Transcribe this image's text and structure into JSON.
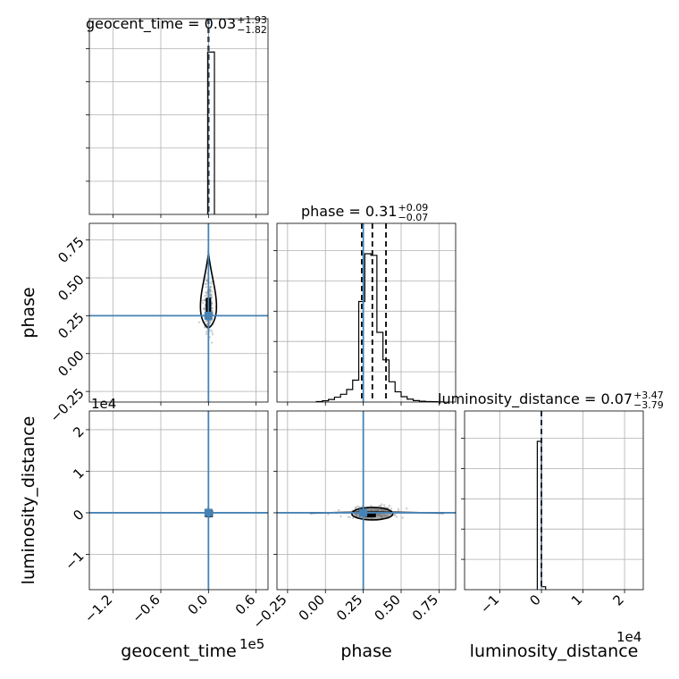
{
  "chart_data": {
    "type": "corner",
    "parameters": [
      "geocent_time",
      "phase",
      "luminosity_distance"
    ],
    "titles": [
      {
        "param": "geocent_time",
        "text": "geocent_time = 0.03",
        "plus": "+1.93",
        "minus": "−1.82"
      },
      {
        "param": "phase",
        "text": "phase = 0.31",
        "plus": "+0.09",
        "minus": "−0.07"
      },
      {
        "param": "luminosity_distance",
        "text": "luminosity_distance = 0.07",
        "plus": "+3.47",
        "minus": "−3.79"
      }
    ],
    "xlabels": [
      "geocent_time",
      "phase",
      "luminosity_distance"
    ],
    "ylabels": [
      "phase",
      "luminosity_distance"
    ],
    "offset_texts": {
      "geocent_time_x": "1e5",
      "luminosity_distance_y": "1e4",
      "luminosity_distance_x": "1e4"
    },
    "ranges": {
      "geocent_time": [
        -1.5,
        0.75
      ],
      "phase": [
        -0.32,
        0.86
      ],
      "luminosity_distance": [
        -1.85,
        2.45
      ]
    },
    "ticks": {
      "geocent_time": [
        "-1.2",
        "-0.6",
        "0.0",
        "0.6"
      ],
      "phase": [
        "-0.25",
        "0.00",
        "0.25",
        "0.50",
        "0.75"
      ],
      "luminosity_distance": [
        "-1",
        "0",
        "1",
        "2"
      ]
    },
    "truth": {
      "geocent_time": 0.0,
      "phase": 0.25,
      "luminosity_distance": 0.0
    },
    "quantiles": {
      "geocent_time": [
        0.0,
        0.0,
        0.0
      ],
      "phase": [
        0.24,
        0.31,
        0.4
      ],
      "luminosity_distance": [
        0.0,
        0.0,
        0.0
      ]
    },
    "hist_geocent_time": {
      "bin_edges": [
        -0.01,
        0.075
      ],
      "counts": [
        1.0
      ]
    },
    "hist_phase": {
      "bin_edges": [
        -0.06,
        -0.02,
        0.02,
        0.06,
        0.1,
        0.14,
        0.18,
        0.22,
        0.26,
        0.3,
        0.34,
        0.38,
        0.42,
        0.46,
        0.5,
        0.54,
        0.58,
        0.62,
        0.66,
        0.7,
        0.74,
        0.78
      ],
      "counts": [
        0.003,
        0.008,
        0.016,
        0.03,
        0.048,
        0.077,
        0.135,
        0.62,
        0.915,
        0.905,
        0.43,
        0.26,
        0.125,
        0.063,
        0.033,
        0.018,
        0.009,
        0.005,
        0.003,
        0.002,
        0.001
      ]
    },
    "hist_luminosity_distance": {
      "bin_edges": [
        -0.1,
        0.0,
        0.1
      ],
      "counts": [
        1.0,
        0.02
      ]
    },
    "grid": true
  }
}
